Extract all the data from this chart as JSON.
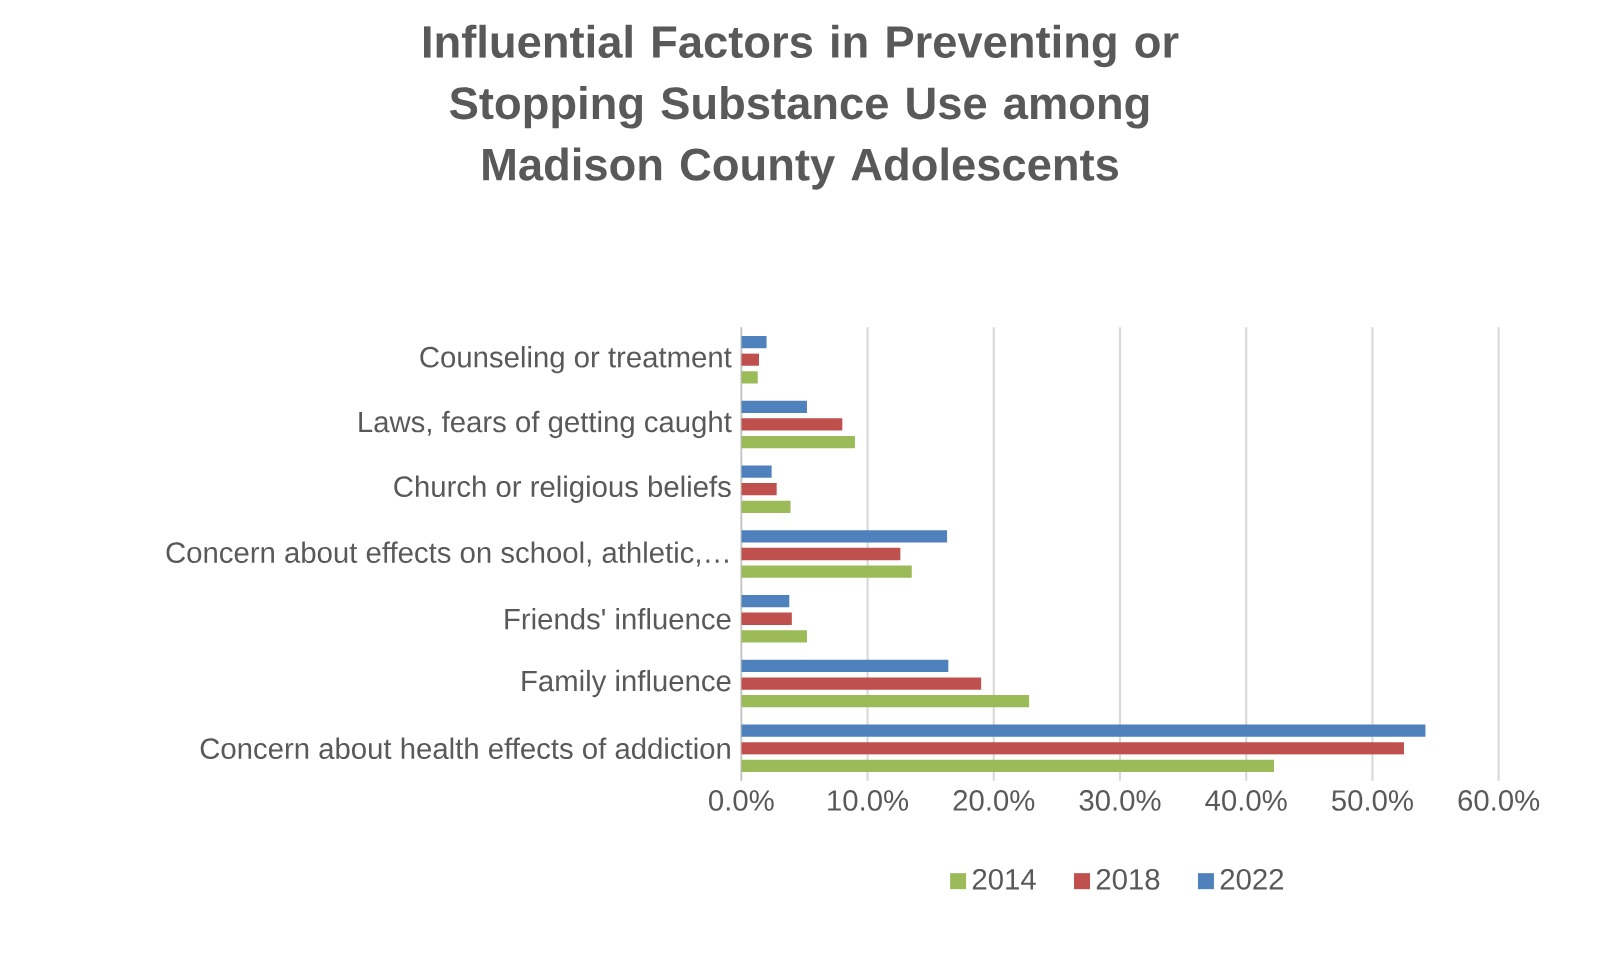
{
  "chart_data": {
    "type": "bar",
    "orientation": "horizontal",
    "title": "Influential Factors in Preventing or Stopping Substance Use among Madison County Adolescents",
    "categories": [
      "Counseling or treatment",
      "Laws, fears of getting caught",
      "Church or religious beliefs",
      "Concern about effects on school, athletic,…",
      "Friends' influence",
      "Family influence",
      "Concern about health effects of addiction"
    ],
    "series": [
      {
        "name": "2014",
        "color": "#9bbb59",
        "values": [
          1.3,
          9.0,
          3.9,
          13.5,
          5.2,
          22.8,
          42.2
        ]
      },
      {
        "name": "2018",
        "color": "#c0504d",
        "values": [
          1.4,
          8.0,
          2.8,
          12.6,
          4.0,
          19.0,
          52.5
        ]
      },
      {
        "name": "2022",
        "color": "#4f81bd",
        "values": [
          2.0,
          5.2,
          2.4,
          16.3,
          3.8,
          16.4,
          54.2
        ]
      }
    ],
    "xlim": [
      0,
      60
    ],
    "xticks": [
      {
        "value": 0,
        "label": "0.0%"
      },
      {
        "value": 10,
        "label": "10.0%"
      },
      {
        "value": 20,
        "label": "20.0%"
      },
      {
        "value": 30,
        "label": "30.0%"
      },
      {
        "value": 40,
        "label": "40.0%"
      },
      {
        "value": 50,
        "label": "50.0%"
      },
      {
        "value": 60,
        "label": "60.0%"
      }
    ],
    "grid": "x",
    "legend": "bottom"
  }
}
